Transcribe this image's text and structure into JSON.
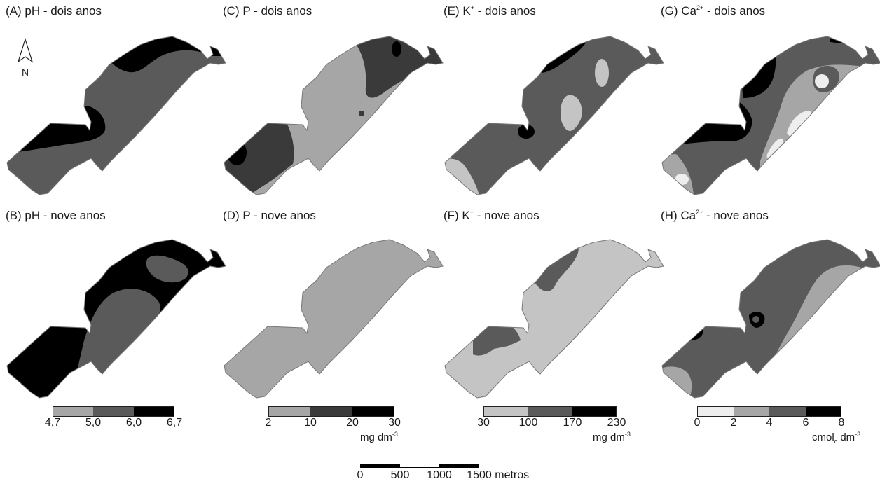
{
  "panels": [
    {
      "id": "A",
      "title_pre": "(A) pH - dois anos",
      "sup": "",
      "title_post": ""
    },
    {
      "id": "C",
      "title_pre": "(C) P - dois anos",
      "sup": "",
      "title_post": ""
    },
    {
      "id": "E",
      "title_pre": "(E) K",
      "sup": "+",
      "title_post": " - dois anos"
    },
    {
      "id": "G",
      "title_pre": "(G) Ca",
      "sup": "2+",
      "title_post": " - dois anos"
    },
    {
      "id": "B",
      "title_pre": "(B) pH - nove anos",
      "sup": "",
      "title_post": ""
    },
    {
      "id": "D",
      "title_pre": "(D) P - nove anos",
      "sup": "",
      "title_post": ""
    },
    {
      "id": "F",
      "title_pre": "(F) K",
      "sup": "+",
      "title_post": " - nove anos"
    },
    {
      "id": "H",
      "title_pre": "(H) Ca",
      "sup": "2+",
      "title_post": " - nove anos"
    }
  ],
  "north_label": "N",
  "legends": [
    {
      "id": "ph",
      "ticks": [
        "4,7",
        "5,0",
        "6,0",
        "6,7"
      ],
      "colors": [
        "#a6a6a6",
        "#5a5a5a",
        "#000000"
      ],
      "unit_main": "",
      "unit_sup": "",
      "unit_sub": "",
      "unit_tail": ""
    },
    {
      "id": "p",
      "ticks": [
        "2",
        "10",
        "20",
        "30"
      ],
      "colors": [
        "#a6a6a6",
        "#3a3a3a",
        "#000000"
      ],
      "unit_main": "mg dm",
      "unit_sup": "-3",
      "unit_sub": "",
      "unit_tail": ""
    },
    {
      "id": "k",
      "ticks": [
        "30",
        "100",
        "170",
        "230"
      ],
      "colors": [
        "#c4c4c4",
        "#5a5a5a",
        "#000000"
      ],
      "unit_main": "mg dm",
      "unit_sup": "-3",
      "unit_sub": "",
      "unit_tail": ""
    },
    {
      "id": "ca",
      "ticks": [
        "0",
        "2",
        "4",
        "6",
        "8"
      ],
      "colors": [
        "#eeeeee",
        "#a6a6a6",
        "#5a5a5a",
        "#000000"
      ],
      "unit_main": "cmol",
      "unit_sub": "c",
      "unit_tail": " dm",
      "unit_sup": "-3"
    }
  ],
  "scale_bar": {
    "ticks": [
      "0",
      "500",
      "1000",
      "1500 metros"
    ]
  },
  "colors": {
    "white": "#f2f2f2",
    "light": "#c4c4c4",
    "mid": "#a6a6a6",
    "dark": "#5a5a5a",
    "darker": "#3a3a3a",
    "black": "#000000"
  }
}
